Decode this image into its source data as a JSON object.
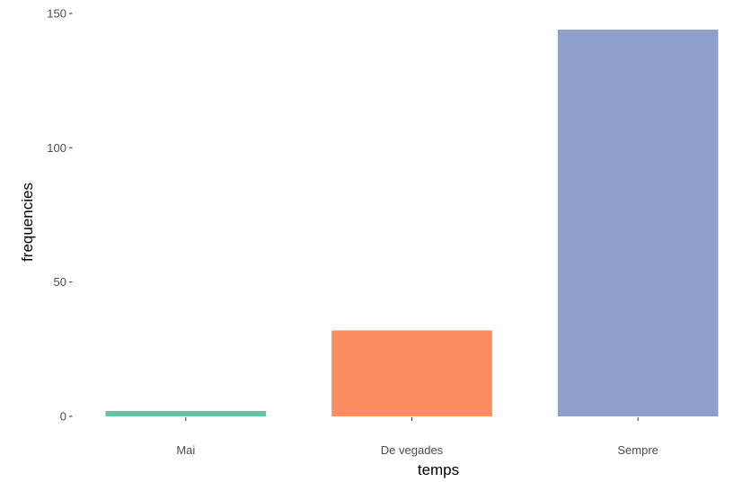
{
  "chart_data": {
    "type": "bar",
    "categories": [
      "Mai",
      "De vegades",
      "Sempre"
    ],
    "values": [
      2,
      32,
      144
    ],
    "colors": [
      "#66c2a5",
      "#fc8d62",
      "#8da0cb"
    ],
    "xlabel": "temps",
    "ylabel": "frequencies",
    "ylim": [
      0,
      150
    ],
    "yticks": [
      0,
      50,
      100,
      150
    ],
    "grid": false,
    "legend": "none"
  }
}
